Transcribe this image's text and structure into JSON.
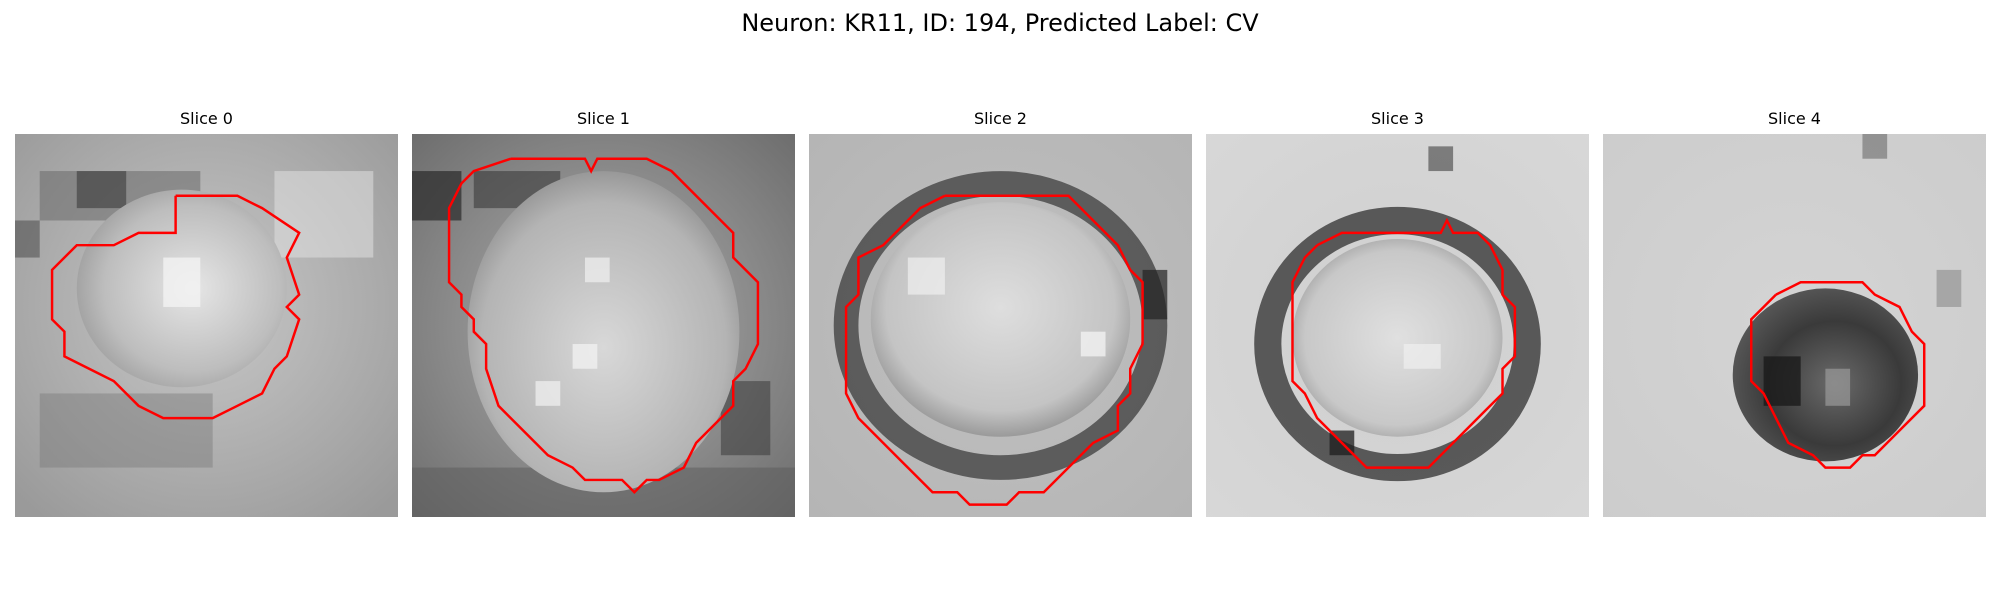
{
  "figure": {
    "title": "Neuron: KR11, ID: 194, Predicted Label: CV"
  },
  "slices": [
    {
      "title": "Slice 0"
    },
    {
      "title": "Slice 1"
    },
    {
      "title": "Slice 2"
    },
    {
      "title": "Slice 3"
    },
    {
      "title": "Slice 4"
    }
  ],
  "colors": {
    "contour": "#ff0000",
    "background": "#ffffff"
  }
}
